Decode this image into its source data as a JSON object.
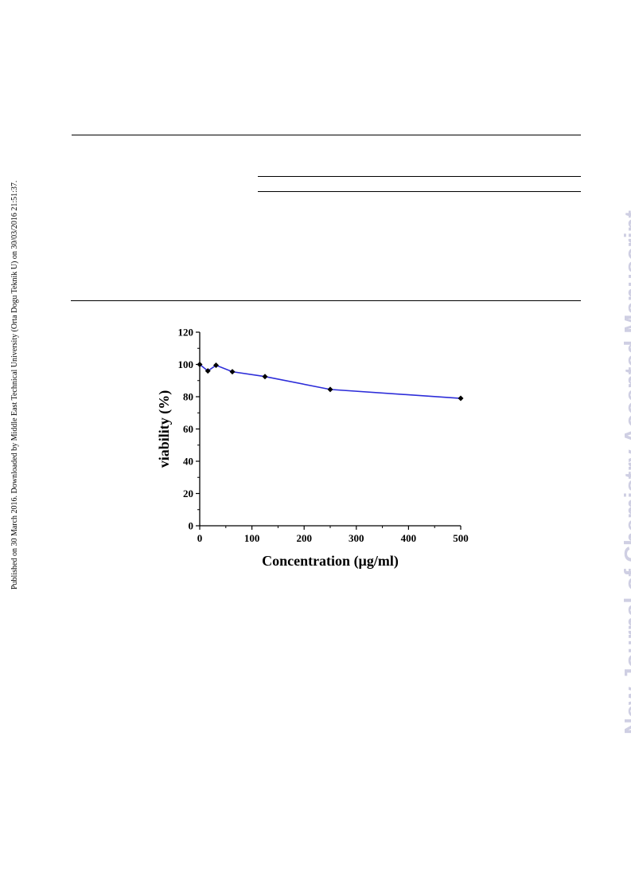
{
  "side_note": "Published on 30 March 2016. Downloaded by Middle East Technical University (Orta Dogu Teknik U) on 30/03/2016 21:51:37.",
  "watermark": "New Journal of Chemistry Accepted Manuscript",
  "chart_data": {
    "type": "line",
    "xlabel": "Concentration (µg/ml)",
    "ylabel": "viability (%)",
    "xlim": [
      0,
      500
    ],
    "ylim": [
      0,
      120
    ],
    "x_ticks": [
      0,
      100,
      200,
      300,
      400,
      500
    ],
    "y_ticks": [
      0,
      20,
      40,
      60,
      80,
      100,
      120
    ],
    "grid": false,
    "series": [
      {
        "color": "#2d2dd9",
        "marker": "diamond",
        "x": [
          0,
          15.6,
          31.25,
          62.5,
          125,
          250,
          500
        ],
        "y": [
          100,
          96,
          99.5,
          95.5,
          92.5,
          84.5,
          79
        ]
      }
    ]
  }
}
